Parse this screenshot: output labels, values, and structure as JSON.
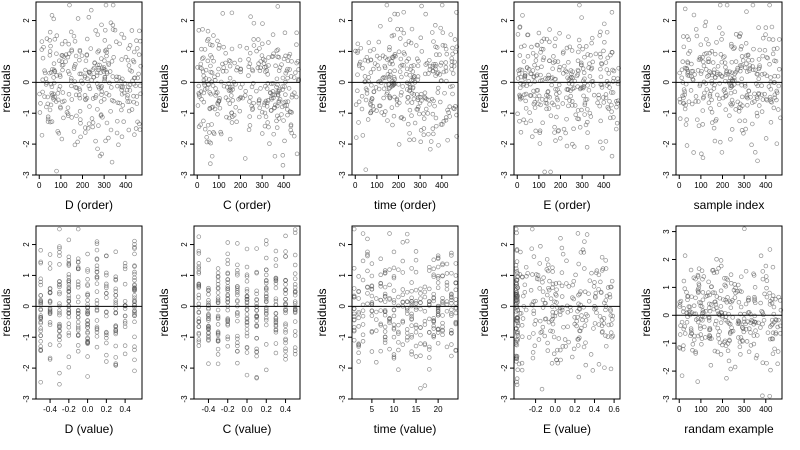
{
  "chart_data": [
    {
      "type": "scatter",
      "xlabel": "D (order)",
      "ylabel": "residuals",
      "xlim": [
        -15,
        475
      ],
      "ylim": [
        -3,
        2.6
      ],
      "xticks": [
        0,
        100,
        200,
        300,
        400
      ],
      "yticks": [
        -3,
        -2,
        -1,
        0,
        1,
        2
      ],
      "hline": 0,
      "x_distribution": "uniform"
    },
    {
      "type": "scatter",
      "xlabel": "C (order)",
      "ylabel": "residuals",
      "xlim": [
        -15,
        475
      ],
      "ylim": [
        -3,
        2.6
      ],
      "xticks": [
        0,
        100,
        200,
        300,
        400
      ],
      "yticks": [
        -3,
        -2,
        -1,
        0,
        1,
        2
      ],
      "hline": 0,
      "x_distribution": "uniform"
    },
    {
      "type": "scatter",
      "xlabel": "time (order)",
      "ylabel": "residuals",
      "xlim": [
        -15,
        475
      ],
      "ylim": [
        -3,
        2.6
      ],
      "xticks": [
        0,
        100,
        200,
        300,
        400
      ],
      "yticks": [
        -3,
        -2,
        -1,
        0,
        1,
        2
      ],
      "hline": 0,
      "x_distribution": "uniform"
    },
    {
      "type": "scatter",
      "xlabel": "E (order)",
      "ylabel": "residuals",
      "xlim": [
        -15,
        475
      ],
      "ylim": [
        -3,
        2.6
      ],
      "xticks": [
        0,
        100,
        200,
        300,
        400
      ],
      "yticks": [
        -3,
        -2,
        -1,
        0,
        1,
        2
      ],
      "hline": 0,
      "x_distribution": "uniform"
    },
    {
      "type": "scatter",
      "xlabel": "sample index",
      "ylabel": "residuals",
      "xlim": [
        -15,
        475
      ],
      "ylim": [
        -3,
        2.6
      ],
      "xticks": [
        0,
        100,
        200,
        300,
        400
      ],
      "yticks": [
        -3,
        -2,
        -1,
        0,
        1,
        2
      ],
      "hline": 0,
      "x_distribution": "uniform"
    },
    {
      "type": "scatter",
      "xlabel": "D (value)",
      "ylabel": "residuals",
      "xlim": [
        -0.55,
        0.58
      ],
      "ylim": [
        -3,
        2.6
      ],
      "xticks": [
        -0.4,
        -0.2,
        0.0,
        0.2,
        0.4
      ],
      "yticks": [
        -3,
        -2,
        -1,
        0,
        1,
        2
      ],
      "hline": 0,
      "x_distribution": "discrete",
      "x_levels": [
        -0.5,
        -0.4,
        -0.3,
        -0.2,
        -0.1,
        0.0,
        0.1,
        0.2,
        0.3,
        0.4,
        0.5
      ]
    },
    {
      "type": "scatter",
      "xlabel": "C (value)",
      "ylabel": "residuals",
      "xlim": [
        -0.55,
        0.55
      ],
      "ylim": [
        -3,
        2.6
      ],
      "xticks": [
        -0.4,
        -0.2,
        0.0,
        0.2,
        0.4
      ],
      "yticks": [
        -3,
        -2,
        -1,
        0,
        1,
        2
      ],
      "hline": 0,
      "x_distribution": "discrete",
      "x_levels": [
        -0.5,
        -0.4,
        -0.3,
        -0.2,
        -0.1,
        0.0,
        0.1,
        0.2,
        0.3,
        0.4,
        0.5
      ]
    },
    {
      "type": "scatter",
      "xlabel": "time (value)",
      "ylabel": "residuals",
      "xlim": [
        0.5,
        24.5
      ],
      "ylim": [
        -3,
        2.6
      ],
      "xticks": [
        5,
        10,
        15,
        20
      ],
      "yticks": [
        -3,
        -2,
        -1,
        0,
        1,
        2
      ],
      "hline": 0,
      "x_distribution": "discrete",
      "x_levels": [
        1,
        2,
        3,
        4,
        5,
        6,
        7,
        8,
        9,
        10,
        11,
        12,
        13,
        14,
        15,
        16,
        17,
        18,
        19,
        20,
        21,
        22,
        23,
        24
      ]
    },
    {
      "type": "scatter",
      "xlabel": "E (value)",
      "ylabel": "residuals",
      "xlim": [
        -0.42,
        0.66
      ],
      "ylim": [
        -3,
        2.6
      ],
      "xticks": [
        -0.2,
        0.0,
        0.2,
        0.4,
        0.6
      ],
      "yticks": [
        -3,
        -2,
        -1,
        0,
        1,
        2
      ],
      "hline": 0,
      "x_distribution": "skewed"
    },
    {
      "type": "scatter",
      "xlabel": "randam example",
      "ylabel": "residuals",
      "xlim": [
        -15,
        475
      ],
      "ylim": [
        -3,
        3.2
      ],
      "xticks": [
        0,
        100,
        200,
        300,
        400
      ],
      "yticks": [
        -3,
        -2,
        -1,
        0,
        1,
        2,
        3
      ],
      "hline": 0,
      "x_distribution": "uniform"
    }
  ]
}
